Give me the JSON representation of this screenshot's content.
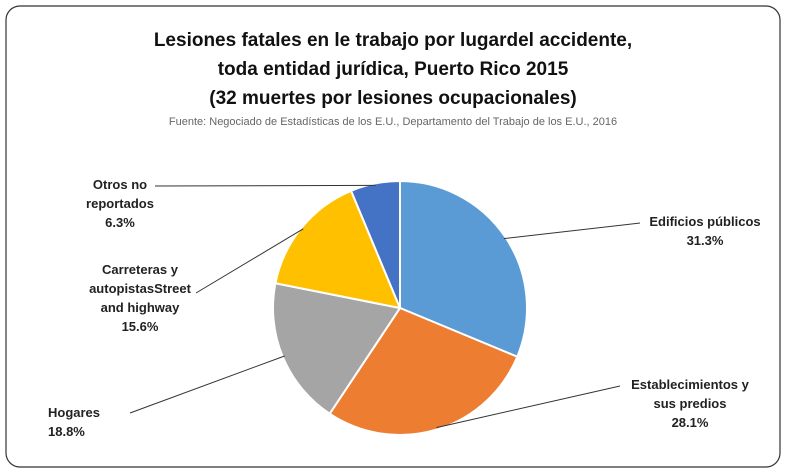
{
  "chart_data": {
    "type": "pie",
    "title": [
      "Lesiones fatales en le trabajo por lugardel accidente,",
      "toda entidad jurídica, Puerto Rico 2015",
      "(32 muertes por lesiones ocupacionales)"
    ],
    "subtitle": "Fuente: Negociado de Estadísticas de los E.U., Departamento del Trabajo de los E.U., 2016",
    "categories": [
      "Edificios públicos",
      "Establecimientos y sus predios",
      "Hogares",
      "Carreteras y autopistasStreet and highway",
      "Otros no reportados"
    ],
    "values": [
      31.3,
      28.1,
      18.8,
      15.6,
      6.3
    ],
    "value_labels": [
      "31.3%",
      "28.1%",
      "18.8%",
      "15.6%",
      "6.3%"
    ],
    "colors": [
      "#5b9bd5",
      "#ed7d31",
      "#a5a5a5",
      "#ffc000",
      "#4472c4"
    ]
  }
}
